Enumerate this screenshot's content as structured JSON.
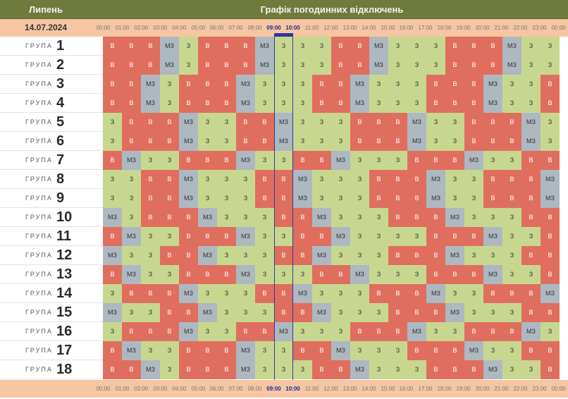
{
  "header": {
    "month": "Липень",
    "title": "Графік погодинних відключень",
    "date": "14.07.2024"
  },
  "hours": [
    "00:00",
    "01:00",
    "02:00",
    "03:00",
    "04:00",
    "05:00",
    "06:00",
    "07:00",
    "08:00",
    "09:00",
    "10:00",
    "11:00",
    "12:00",
    "13:00",
    "14:00",
    "15:00",
    "16:00",
    "17:00",
    "18:00",
    "19:00",
    "20:00",
    "21:00",
    "22:00",
    "23:00",
    "00:00"
  ],
  "current_hour_index": 9,
  "group_label": "ГРУПА",
  "colors": {
    "В": "#e06e5e",
    "З": "#c8d790",
    "МЗ": "#aeb8c0"
  },
  "groups": [
    {
      "number": "1",
      "slots": [
        "В",
        "В",
        "В",
        "МЗ",
        "З",
        "В",
        "В",
        "В",
        "МЗ",
        "З",
        "З",
        "З",
        "В",
        "В",
        "МЗ",
        "З",
        "З",
        "З",
        "В",
        "В",
        "В",
        "МЗ",
        "З",
        "З"
      ]
    },
    {
      "number": "2",
      "slots": [
        "В",
        "В",
        "В",
        "МЗ",
        "З",
        "В",
        "В",
        "В",
        "МЗ",
        "З",
        "З",
        "З",
        "В",
        "В",
        "МЗ",
        "З",
        "З",
        "З",
        "В",
        "В",
        "В",
        "МЗ",
        "З",
        "З"
      ]
    },
    {
      "number": "3",
      "slots": [
        "В",
        "В",
        "МЗ",
        "З",
        "В",
        "В",
        "В",
        "МЗ",
        "З",
        "З",
        "З",
        "В",
        "В",
        "МЗ",
        "З",
        "З",
        "З",
        "В",
        "В",
        "В",
        "МЗ",
        "З",
        "З",
        "В"
      ]
    },
    {
      "number": "4",
      "slots": [
        "В",
        "В",
        "МЗ",
        "З",
        "В",
        "В",
        "В",
        "МЗ",
        "З",
        "З",
        "З",
        "В",
        "В",
        "МЗ",
        "З",
        "З",
        "З",
        "В",
        "В",
        "В",
        "МЗ",
        "З",
        "З",
        "В"
      ]
    },
    {
      "number": "5",
      "slots": [
        "З",
        "В",
        "В",
        "В",
        "МЗ",
        "З",
        "З",
        "В",
        "В",
        "МЗ",
        "З",
        "З",
        "З",
        "В",
        "В",
        "В",
        "МЗ",
        "З",
        "З",
        "В",
        "В",
        "В",
        "МЗ",
        "З"
      ]
    },
    {
      "number": "6",
      "slots": [
        "З",
        "В",
        "В",
        "В",
        "МЗ",
        "З",
        "З",
        "В",
        "В",
        "МЗ",
        "З",
        "З",
        "З",
        "В",
        "В",
        "В",
        "МЗ",
        "З",
        "З",
        "В",
        "В",
        "В",
        "МЗ",
        "З"
      ]
    },
    {
      "number": "7",
      "slots": [
        "В",
        "МЗ",
        "З",
        "З",
        "В",
        "В",
        "В",
        "МЗ",
        "З",
        "З",
        "В",
        "В",
        "МЗ",
        "З",
        "З",
        "З",
        "В",
        "В",
        "В",
        "МЗ",
        "З",
        "З",
        "В",
        "В"
      ]
    },
    {
      "number": "8",
      "slots": [
        "З",
        "З",
        "В",
        "В",
        "МЗ",
        "З",
        "З",
        "З",
        "В",
        "В",
        "МЗ",
        "З",
        "З",
        "З",
        "В",
        "В",
        "В",
        "МЗ",
        "З",
        "З",
        "В",
        "В",
        "В",
        "МЗ"
      ]
    },
    {
      "number": "9",
      "slots": [
        "З",
        "З",
        "В",
        "В",
        "МЗ",
        "З",
        "З",
        "З",
        "В",
        "В",
        "МЗ",
        "З",
        "З",
        "З",
        "В",
        "В",
        "В",
        "МЗ",
        "З",
        "З",
        "В",
        "В",
        "В",
        "МЗ"
      ]
    },
    {
      "number": "10",
      "slots": [
        "МЗ",
        "З",
        "В",
        "В",
        "В",
        "МЗ",
        "З",
        "З",
        "З",
        "В",
        "В",
        "МЗ",
        "З",
        "З",
        "З",
        "В",
        "В",
        "В",
        "МЗ",
        "З",
        "З",
        "З",
        "В",
        "В"
      ]
    },
    {
      "number": "11",
      "slots": [
        "В",
        "МЗ",
        "З",
        "З",
        "В",
        "В",
        "В",
        "МЗ",
        "З",
        "З",
        "В",
        "В",
        "МЗ",
        "З",
        "З",
        "З",
        "З",
        "В",
        "В",
        "В",
        "МЗ",
        "З",
        "З",
        "В"
      ]
    },
    {
      "number": "12",
      "slots": [
        "МЗ",
        "З",
        "З",
        "В",
        "В",
        "МЗ",
        "З",
        "З",
        "З",
        "В",
        "В",
        "МЗ",
        "З",
        "З",
        "З",
        "В",
        "В",
        "В",
        "МЗ",
        "З",
        "З",
        "З",
        "В",
        "В"
      ]
    },
    {
      "number": "13",
      "slots": [
        "В",
        "МЗ",
        "З",
        "З",
        "В",
        "В",
        "В",
        "МЗ",
        "З",
        "З",
        "З",
        "В",
        "В",
        "МЗ",
        "З",
        "З",
        "З",
        "В",
        "В",
        "В",
        "МЗ",
        "З",
        "З",
        "В"
      ]
    },
    {
      "number": "14",
      "slots": [
        "З",
        "В",
        "В",
        "В",
        "МЗ",
        "З",
        "З",
        "З",
        "В",
        "В",
        "МЗ",
        "З",
        "З",
        "З",
        "В",
        "В",
        "В",
        "МЗ",
        "З",
        "З",
        "В",
        "В",
        "В",
        "МЗ"
      ]
    },
    {
      "number": "15",
      "slots": [
        "МЗ",
        "З",
        "З",
        "В",
        "В",
        "МЗ",
        "З",
        "З",
        "З",
        "В",
        "В",
        "МЗ",
        "З",
        "З",
        "З",
        "В",
        "В",
        "В",
        "МЗ",
        "З",
        "З",
        "З",
        "В",
        "В"
      ]
    },
    {
      "number": "16",
      "slots": [
        "З",
        "В",
        "В",
        "В",
        "МЗ",
        "З",
        "З",
        "В",
        "В",
        "МЗ",
        "З",
        "З",
        "З",
        "В",
        "В",
        "В",
        "МЗ",
        "З",
        "З",
        "В",
        "В",
        "В",
        "МЗ",
        "З"
      ]
    },
    {
      "number": "17",
      "slots": [
        "В",
        "МЗ",
        "З",
        "З",
        "В",
        "В",
        "В",
        "МЗ",
        "З",
        "З",
        "В",
        "В",
        "МЗ",
        "З",
        "З",
        "З",
        "В",
        "В",
        "В",
        "МЗ",
        "З",
        "З",
        "В",
        "В"
      ]
    },
    {
      "number": "18",
      "slots": [
        "В",
        "В",
        "МЗ",
        "З",
        "В",
        "В",
        "В",
        "МЗ",
        "З",
        "З",
        "З",
        "В",
        "В",
        "МЗ",
        "З",
        "З",
        "З",
        "В",
        "В",
        "В",
        "МЗ",
        "З",
        "З",
        "В"
      ]
    }
  ]
}
